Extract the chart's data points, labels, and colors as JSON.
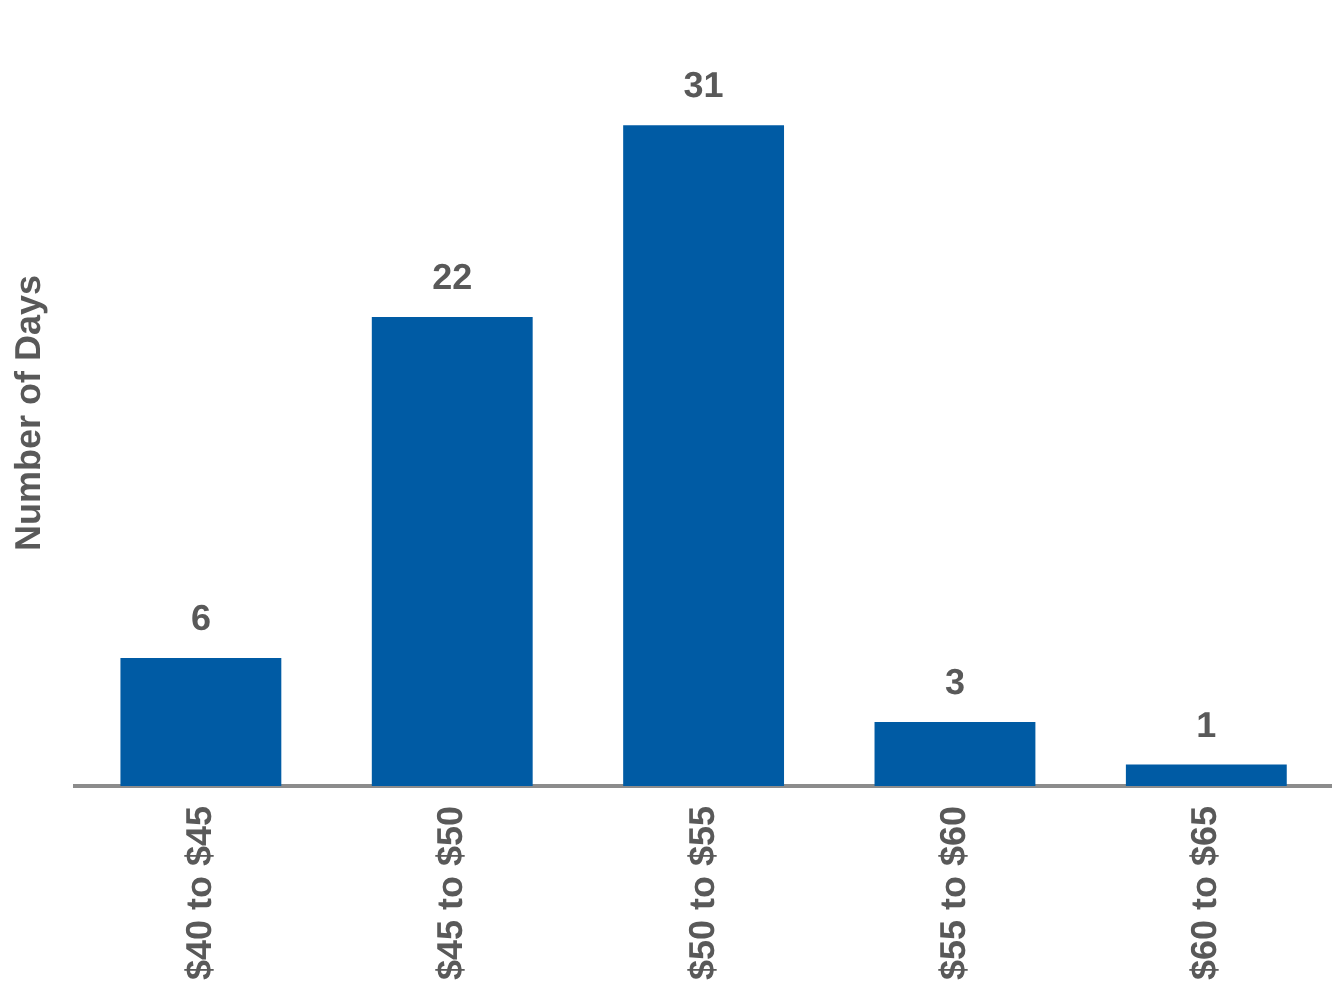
{
  "chart_data": {
    "type": "bar",
    "ylabel": "Number of Days",
    "categories": [
      "$40 to $45",
      "$45 to $50",
      "$50 to $55",
      "$55 to $60",
      "$60 to $65"
    ],
    "values": [
      6,
      22,
      31,
      3,
      1
    ],
    "color": "#005ba4",
    "data_labels": true,
    "grid": false,
    "legend": false
  }
}
